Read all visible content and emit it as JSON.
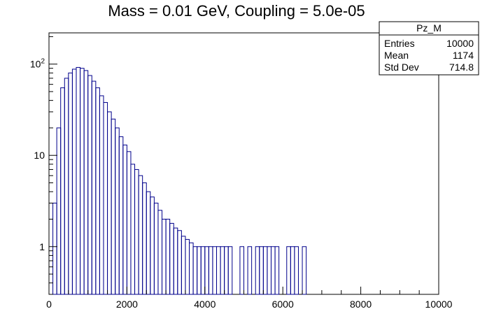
{
  "chart_data": {
    "type": "bar",
    "title": "Mass = 0.01 GeV, Coupling = 5.0e-05",
    "xlabel": "",
    "ylabel": "",
    "xlim": [
      0,
      10000
    ],
    "ylim": [
      0.3,
      220
    ],
    "yscale": "log",
    "x_ticks": [
      {
        "value": 0,
        "label": "0"
      },
      {
        "value": 2000,
        "label": "2000"
      },
      {
        "value": 4000,
        "label": "4000"
      },
      {
        "value": 6000,
        "label": "6000"
      },
      {
        "value": 8000,
        "label": "8000"
      },
      {
        "value": 10000,
        "label": "10000"
      }
    ],
    "y_ticks": [
      {
        "value": 1,
        "label": "1"
      },
      {
        "value": 10,
        "label": "10"
      },
      {
        "value": 100,
        "label": "10^2"
      }
    ],
    "grid": false,
    "line_color": "#00008b",
    "series": [
      {
        "x_centers": [
          150,
          250,
          350,
          450,
          550,
          650,
          750,
          850,
          950,
          1050,
          1150,
          1250,
          1350,
          1450,
          1550,
          1650,
          1750,
          1850,
          1950,
          2050,
          2150,
          2250,
          2350,
          2450,
          2550,
          2650,
          2750,
          2850,
          2950,
          3050,
          3150,
          3250,
          3350,
          3450,
          3550,
          3650,
          3750,
          3850,
          3950,
          4050,
          4150,
          4250,
          4350,
          4450,
          4550,
          4650,
          4750,
          4850,
          4950,
          5050,
          5150,
          5250,
          5350,
          5450,
          5550,
          5650,
          5750,
          5850,
          5950,
          6050,
          6150,
          6250,
          6350,
          6450,
          6550
        ],
        "values": [
          3,
          20,
          55,
          70,
          80,
          88,
          92,
          90,
          85,
          75,
          65,
          55,
          45,
          38,
          30,
          25,
          20,
          16,
          13,
          11,
          8,
          7,
          6,
          5,
          4,
          3.5,
          3,
          2.5,
          2,
          2,
          1.8,
          1.6,
          1.5,
          1.3,
          1.2,
          1.1,
          1,
          1,
          1,
          1,
          1,
          1,
          1,
          1,
          1,
          1,
          0,
          0,
          1,
          0,
          1,
          0,
          1,
          1,
          1,
          1,
          1,
          1,
          0,
          0,
          1,
          1,
          1,
          0,
          1
        ]
      }
    ]
  },
  "stats_box": {
    "name": "Pz_M",
    "rows": [
      {
        "label": "Entries",
        "value": "10000"
      },
      {
        "label": "Mean",
        "value": "1174"
      },
      {
        "label": "Std Dev",
        "value": "714.8"
      }
    ]
  }
}
